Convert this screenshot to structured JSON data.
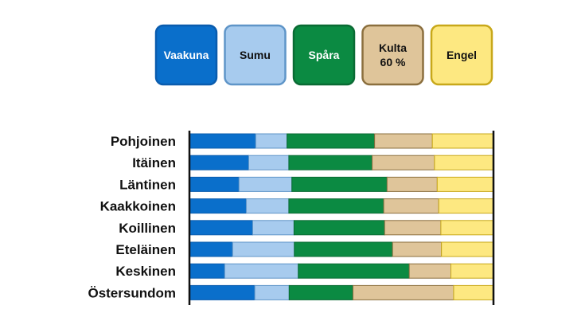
{
  "chart_data": {
    "type": "bar",
    "orientation": "horizontal",
    "stacked": true,
    "normalized": true,
    "title": "",
    "xlabel": "",
    "ylabel": "",
    "xlim": [
      0,
      100
    ],
    "grid": false,
    "legend_position": "top",
    "categories": [
      "Pohjoinen",
      "Itäinen",
      "Läntinen",
      "Kaakkoinen",
      "Koillinen",
      "Eteläinen",
      "Keskinen",
      "Östersundom"
    ],
    "series": [
      {
        "name": "Vaakuna",
        "color": "#0a6fcb",
        "border": "#0a5cae",
        "text_color": "#ffffff",
        "values": [
          21.8,
          19.5,
          16.3,
          18.7,
          20.8,
          14.2,
          11.6,
          21.5
        ]
      },
      {
        "name": "Sumu",
        "color": "#a7cbee",
        "border": "#5f95c8",
        "text_color": "#111111",
        "values": [
          10.3,
          13.2,
          17.4,
          14.0,
          13.6,
          20.3,
          24.2,
          11.3
        ]
      },
      {
        "name": "Spåra",
        "color": "#0b8a42",
        "border": "#0a6b34",
        "text_color": "#ffffff",
        "values": [
          28.8,
          27.4,
          31.3,
          31.2,
          29.8,
          32.3,
          36.5,
          21.0
        ]
      },
      {
        "name": "Kulta 60 %",
        "label_lines": [
          "Kulta",
          "60 %"
        ],
        "color": "#dfc59a",
        "border": "#8b6f3e",
        "text_color": "#111111",
        "values": [
          19.0,
          20.5,
          16.5,
          18.1,
          18.5,
          16.1,
          13.7,
          33.1
        ]
      },
      {
        "name": "Engel",
        "color": "#fde881",
        "border": "#c8a81a",
        "text_color": "#111111",
        "values": [
          20.1,
          19.4,
          18.5,
          18.0,
          17.3,
          17.1,
          14.0,
          13.1
        ]
      }
    ]
  }
}
